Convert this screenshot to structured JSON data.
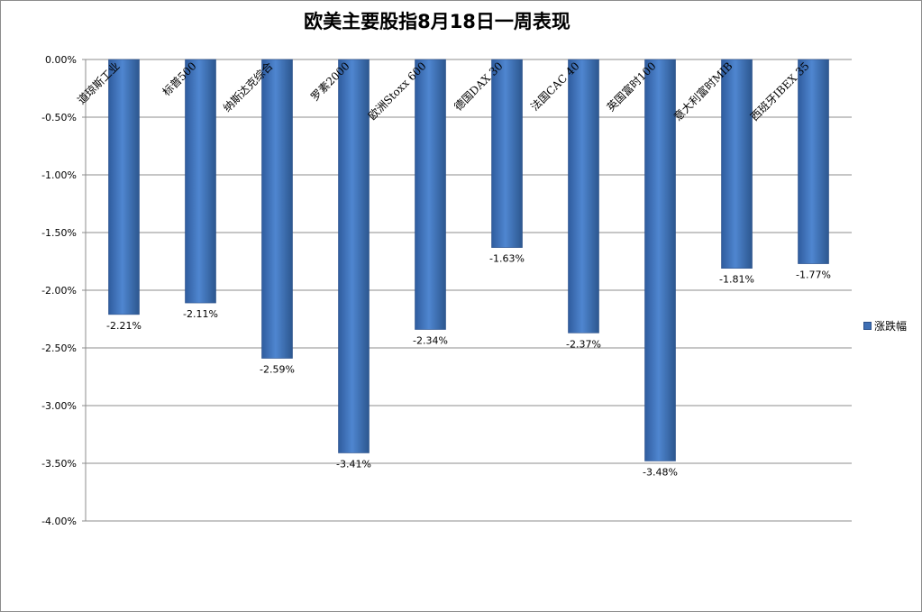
{
  "chart_data": {
    "type": "bar",
    "title": "欧美主要股指8月18日一周表现",
    "categories": [
      "道琼斯工业",
      "标普500",
      "纳斯达克综合",
      "罗素2000",
      "欧洲Stoxx 600",
      "德国DAX 30",
      "法国CAC 40",
      "英国富时100",
      "意大利富时MIB",
      "西班牙IBEX 35"
    ],
    "series": [
      {
        "name": "涨跌幅",
        "values": [
          -2.21,
          -2.11,
          -2.59,
          -3.41,
          -2.34,
          -1.63,
          -2.37,
          -3.48,
          -1.81,
          -1.77
        ],
        "data_labels": [
          "-2.21%",
          "-2.11%",
          "-2.59%",
          "-3.41%",
          "-2.34%",
          "-1.63%",
          "-2.37%",
          "-3.48%",
          "-1.81%",
          "-1.77%"
        ]
      }
    ],
    "ylim": [
      -4.0,
      0.0
    ],
    "y_ticks": [
      0.0,
      -0.5,
      -1.0,
      -1.5,
      -2.0,
      -2.5,
      -3.0,
      -3.5,
      -4.0
    ],
    "y_tick_labels": [
      "0.00%",
      "-0.50%",
      "-1.00%",
      "-1.50%",
      "-2.00%",
      "-2.50%",
      "-3.00%",
      "-3.50%",
      "-4.00%"
    ],
    "xlabel": "",
    "ylabel": "",
    "grid": true,
    "legend_position": "right",
    "bar_color": "#4a7cc3"
  }
}
